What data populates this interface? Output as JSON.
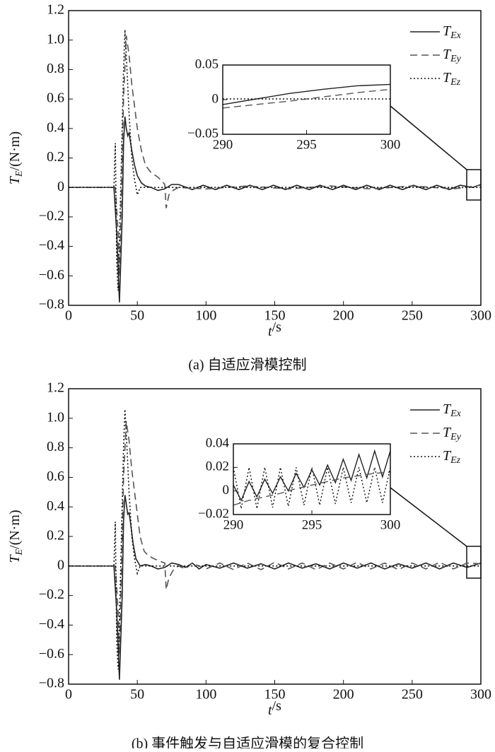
{
  "chart_data": [
    {
      "type": "line",
      "caption": "(a) 自适应滑模控制",
      "xlabel": "t/s",
      "ylabel": "TE/(N·m)",
      "xlim": [
        0,
        300
      ],
      "ylim": [
        -0.8,
        1.2
      ],
      "xticks": [
        0,
        50,
        100,
        150,
        200,
        250,
        300
      ],
      "yticks": [
        {
          "value": -0.8,
          "label": "−0.8"
        },
        {
          "value": -0.6,
          "label": "−0.6"
        },
        {
          "value": -0.4,
          "label": "−0.4"
        },
        {
          "value": -0.2,
          "label": "−0.2"
        },
        0,
        0.2,
        0.4,
        0.6,
        0.8,
        {
          "value": 1,
          "label": "1.0"
        },
        1.2
      ],
      "legend": "upper right",
      "series": [
        {
          "name": "TEx",
          "style": "solid",
          "color": "#222222",
          "x": [
            0,
            33,
            35,
            37,
            39,
            40,
            41,
            42,
            43,
            44,
            46,
            48,
            50,
            53,
            56,
            60,
            65,
            70,
            75,
            80,
            90,
            98,
            107,
            115,
            124,
            132,
            141,
            149,
            158,
            166,
            175,
            183,
            192,
            200,
            209,
            217,
            226,
            234,
            243,
            251,
            260,
            268,
            277,
            285,
            294,
            300
          ],
          "values": [
            0,
            0,
            -0.3,
            -0.78,
            -0.2,
            0.3,
            0.48,
            0.4,
            0.35,
            0.37,
            0.25,
            0.15,
            0.08,
            0.03,
            0.01,
            0,
            -0.02,
            -0.01,
            0.02,
            0.02,
            -0.015,
            0.015,
            -0.015,
            0.015,
            -0.015,
            0.015,
            -0.015,
            0.015,
            -0.015,
            0.015,
            -0.015,
            0.015,
            -0.015,
            0.015,
            -0.015,
            0.015,
            -0.015,
            0.015,
            -0.015,
            0.015,
            -0.015,
            0.015,
            -0.015,
            0.015,
            0,
            0.02
          ]
        },
        {
          "name": "TEy",
          "style": "dashed",
          "color": "#555555",
          "x": [
            0,
            34,
            36,
            37,
            38,
            40,
            42,
            44,
            46,
            48,
            50,
            53,
            56,
            60,
            65,
            70,
            71,
            73,
            76,
            80,
            100,
            130,
            160,
            190,
            220,
            250,
            280,
            300
          ],
          "values": [
            0,
            0,
            -0.3,
            -0.6,
            -0.2,
            0.6,
            1.03,
            0.9,
            0.7,
            0.55,
            0.4,
            0.25,
            0.15,
            0.1,
            0.07,
            0.02,
            -0.14,
            -0.05,
            -0.02,
            0,
            -0.01,
            0.01,
            -0.01,
            0.01,
            -0.01,
            0.01,
            -0.01,
            0.015
          ]
        },
        {
          "name": "TEz",
          "style": "dotted",
          "color": "#111111",
          "x": [
            0,
            33,
            34,
            35,
            36,
            38,
            40,
            41,
            42,
            44,
            46,
            48,
            50,
            52,
            60,
            300
          ],
          "values": [
            0,
            0,
            0.3,
            -0.5,
            -0.7,
            0,
            0.8,
            1.07,
            0.9,
            0.5,
            0.2,
            0.05,
            -0.05,
            0,
            0,
            0
          ]
        }
      ],
      "inset": {
        "type": "line",
        "xlim": [
          290,
          300
        ],
        "ylim": [
          -0.05,
          0.05
        ],
        "xticks": [
          290,
          295,
          300
        ],
        "yticks": [
          {
            "value": -0.05,
            "label": "−0.05"
          },
          0,
          0.05
        ],
        "series": [
          {
            "style": "solid",
            "color": "#222222",
            "x": [
              290,
              292,
              294,
              296,
              298,
              300
            ],
            "values": [
              -0.007,
              0.001,
              0.009,
              0.015,
              0.02,
              0.022
            ]
          },
          {
            "style": "dashed",
            "color": "#555555",
            "x": [
              290,
              292,
              294,
              296,
              298,
              300
            ],
            "values": [
              -0.012,
              -0.007,
              -0.002,
              0.004,
              0.01,
              0.015
            ]
          },
          {
            "style": "dotted",
            "color": "#111111",
            "x": [
              290,
              300
            ],
            "values": [
              0.001,
              0.001
            ]
          }
        ]
      }
    },
    {
      "type": "line",
      "caption": "(b) 事件触发与自适应滑模的复合控制",
      "xlabel": "t/s",
      "ylabel": "TE/(N·m)",
      "xlim": [
        0,
        300
      ],
      "ylim": [
        -0.8,
        1.2
      ],
      "xticks": [
        0,
        50,
        100,
        150,
        200,
        250,
        300
      ],
      "yticks": [
        {
          "value": -0.8,
          "label": "−0.8"
        },
        {
          "value": -0.6,
          "label": "−0.6"
        },
        {
          "value": -0.4,
          "label": "−0.4"
        },
        {
          "value": -0.2,
          "label": "−0.2"
        },
        0,
        0.2,
        0.4,
        0.6,
        0.8,
        {
          "value": 1,
          "label": "1.0"
        },
        1.2
      ],
      "legend": "upper right",
      "series": [
        {
          "name": "TEx",
          "style": "solid",
          "color": "#222222",
          "x": [
            0,
            33,
            35,
            37,
            39,
            40,
            41,
            42,
            43,
            44,
            45,
            47,
            49,
            52,
            56,
            60,
            65,
            70,
            75,
            80,
            85,
            90,
            95,
            100,
            110,
            120,
            130,
            140,
            150,
            160,
            170,
            180,
            190,
            200,
            210,
            220,
            230,
            240,
            250,
            260,
            270,
            280,
            290,
            300
          ],
          "values": [
            0,
            0,
            -0.3,
            -0.77,
            -0.2,
            0.3,
            0.48,
            0.42,
            0.35,
            0.36,
            0.3,
            0.15,
            0.05,
            0,
            0.01,
            0,
            -0.02,
            -0.01,
            0.02,
            0.01,
            -0.01,
            0.02,
            -0.02,
            0.01,
            -0.015,
            0.02,
            -0.015,
            0.015,
            -0.02,
            0.02,
            -0.015,
            0.015,
            -0.02,
            0.02,
            -0.015,
            0.02,
            -0.02,
            0.015,
            -0.015,
            0.02,
            -0.02,
            0.02,
            -0.01,
            0.02
          ]
        },
        {
          "name": "TEy",
          "style": "dashed",
          "color": "#555555",
          "x": [
            0,
            34,
            36,
            37,
            38,
            40,
            42,
            44,
            46,
            48,
            50,
            52,
            55,
            58,
            62,
            67,
            70,
            71,
            73,
            76,
            80,
            85,
            90,
            100,
            110,
            120,
            130,
            140,
            150,
            160,
            170,
            180,
            190,
            200,
            210,
            220,
            230,
            240,
            250,
            260,
            270,
            280,
            290,
            300
          ],
          "values": [
            0,
            0,
            -0.3,
            -0.6,
            -0.2,
            0.6,
            0.98,
            0.85,
            0.65,
            0.5,
            0.35,
            0.2,
            0.1,
            0.07,
            0.05,
            0.03,
            0.02,
            -0.16,
            -0.08,
            -0.03,
            0,
            -0.02,
            0.02,
            -0.02,
            0.02,
            -0.025,
            0.02,
            -0.025,
            0.025,
            -0.02,
            0.02,
            -0.025,
            0.02,
            -0.02,
            0.025,
            -0.02,
            0.02,
            -0.025,
            0.02,
            -0.02,
            0.025,
            -0.02,
            0.02,
            0.015
          ]
        },
        {
          "name": "TEz",
          "style": "dotted",
          "color": "#111111",
          "x": [
            0,
            33,
            34,
            35,
            36,
            38,
            40,
            41,
            42,
            44,
            46,
            48,
            50,
            52,
            60,
            300
          ],
          "values": [
            0,
            0,
            0.3,
            -0.5,
            -0.7,
            0,
            0.8,
            1.06,
            0.9,
            0.5,
            0.2,
            0.05,
            -0.05,
            0,
            0,
            0
          ]
        }
      ],
      "inset": {
        "type": "line",
        "xlim": [
          290,
          300
        ],
        "ylim": [
          -0.02,
          0.04
        ],
        "xticks": [
          290,
          295,
          300
        ],
        "yticks": [
          {
            "value": -0.02,
            "label": "−0.02"
          },
          0,
          0.02,
          0.04
        ],
        "series": [
          {
            "style": "solid",
            "color": "#222222",
            "x": [
              290,
              290.5,
              291,
              291.5,
              292,
              292.5,
              293,
              293.5,
              294,
              294.5,
              295,
              295.5,
              296,
              296.5,
              297,
              297.5,
              298,
              298.5,
              299,
              299.5,
              300
            ],
            "values": [
              0.005,
              -0.008,
              0.008,
              -0.005,
              0.01,
              -0.002,
              0.012,
              0,
              0.015,
              0.003,
              0.018,
              0.005,
              0.022,
              0.007,
              0.027,
              0.009,
              0.031,
              0.011,
              0.034,
              0.012,
              0.034
            ]
          },
          {
            "style": "dashed",
            "color": "#555555",
            "x": [
              290,
              291,
              292,
              293,
              294,
              295,
              296,
              297,
              298,
              299,
              300
            ],
            "values": [
              -0.012,
              -0.008,
              -0.005,
              -0.002,
              0.002,
              0.005,
              0.008,
              0.011,
              0.013,
              0.015,
              0.016
            ]
          },
          {
            "style": "dotted",
            "color": "#111111",
            "x": [
              290,
              290.5,
              291,
              291.5,
              292,
              292.5,
              293,
              293.5,
              294,
              294.5,
              295,
              295.5,
              296,
              296.5,
              297,
              297.5,
              298,
              298.5,
              299,
              299.5,
              300
            ],
            "values": [
              0.02,
              -0.015,
              0.02,
              -0.015,
              0.02,
              -0.014,
              0.02,
              -0.013,
              0.02,
              -0.012,
              0.02,
              -0.012,
              0.02,
              -0.011,
              0.02,
              -0.01,
              0.02,
              -0.01,
              0.02,
              -0.01,
              0.02
            ]
          }
        ]
      }
    }
  ]
}
